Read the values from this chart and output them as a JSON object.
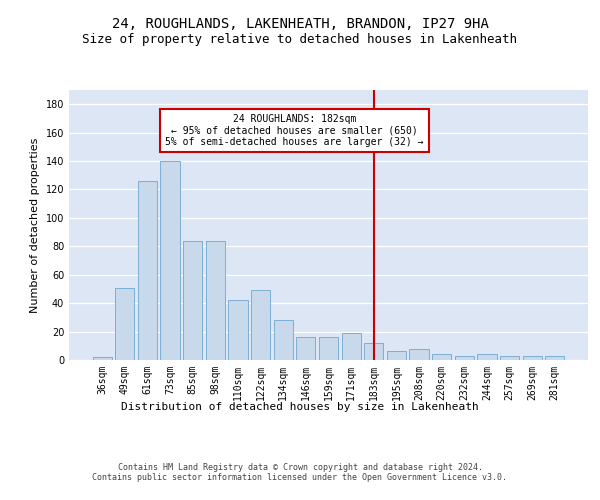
{
  "title": "24, ROUGHLANDS, LAKENHEATH, BRANDON, IP27 9HA",
  "subtitle": "Size of property relative to detached houses in Lakenheath",
  "xlabel": "Distribution of detached houses by size in Lakenheath",
  "ylabel": "Number of detached properties",
  "categories": [
    "36sqm",
    "49sqm",
    "61sqm",
    "73sqm",
    "85sqm",
    "98sqm",
    "110sqm",
    "122sqm",
    "134sqm",
    "146sqm",
    "159sqm",
    "171sqm",
    "183sqm",
    "195sqm",
    "208sqm",
    "220sqm",
    "232sqm",
    "244sqm",
    "257sqm",
    "269sqm",
    "281sqm"
  ],
  "values": [
    2,
    51,
    126,
    140,
    84,
    84,
    42,
    49,
    28,
    16,
    16,
    19,
    12,
    6,
    8,
    4,
    3,
    4,
    3,
    3,
    3
  ],
  "bar_color": "#c9d9ec",
  "bar_edgecolor": "#7bafd4",
  "vline_x_index": 12,
  "vline_color": "#cc0000",
  "annotation_text": "24 ROUGHLANDS: 182sqm\n← 95% of detached houses are smaller (650)\n5% of semi-detached houses are larger (32) →",
  "annotation_box_edgecolor": "#cc0000",
  "ylim": [
    0,
    190
  ],
  "yticks": [
    0,
    20,
    40,
    60,
    80,
    100,
    120,
    140,
    160,
    180
  ],
  "footer_text": "Contains HM Land Registry data © Crown copyright and database right 2024.\nContains public sector information licensed under the Open Government Licence v3.0.",
  "bg_color": "#dce6f5",
  "plot_bg_color": "#dce6f5",
  "title_fontsize": 10,
  "subtitle_fontsize": 9,
  "ylabel_fontsize": 8,
  "xlabel_fontsize": 8,
  "tick_fontsize": 7,
  "footer_fontsize": 6
}
